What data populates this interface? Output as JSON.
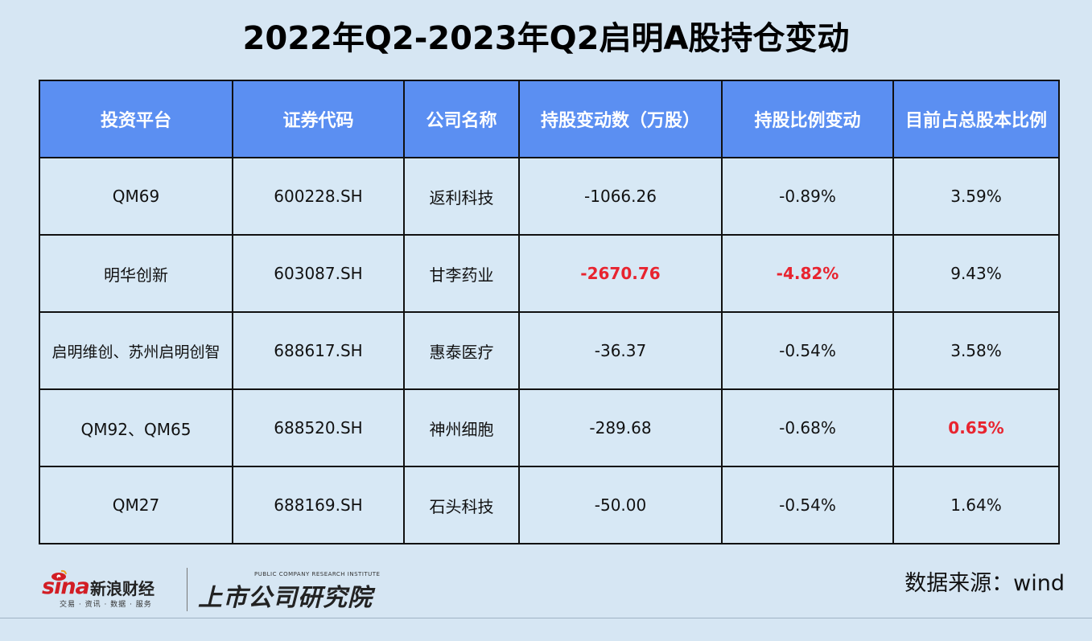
{
  "title": "2022年Q2-2023年Q2启明A股持仓变动",
  "table": {
    "headers": [
      "投资平台",
      "证券代码",
      "公司名称",
      "持股变动数（万股）",
      "持股比例变动",
      "目前占总股本比例"
    ],
    "rows": [
      {
        "platform": "QM69",
        "code": "600228.SH",
        "company": "返利科技",
        "change": "-1066.26",
        "ratio_change": "-0.89%",
        "current_ratio": "3.59%"
      },
      {
        "platform": "明华创新",
        "code": "603087.SH",
        "company": "甘李药业",
        "change": "-2670.76",
        "ratio_change": "-4.82%",
        "current_ratio": "9.43%"
      },
      {
        "platform": "启明维创、苏州启明创智",
        "code": "688617.SH",
        "company": "惠泰医疗",
        "change": "-36.37",
        "ratio_change": "-0.54%",
        "current_ratio": "3.58%"
      },
      {
        "platform": "QM92、QM65",
        "code": "688520.SH",
        "company": "神州细胞",
        "change": "-289.68",
        "ratio_change": "-0.68%",
        "current_ratio": "0.65%"
      },
      {
        "platform": "QM27",
        "code": "688169.SH",
        "company": "石头科技",
        "change": "-50.00",
        "ratio_change": "-0.54%",
        "current_ratio": "1.64%"
      }
    ]
  },
  "highlight_color": "#e8242f",
  "header_color": "#5b8ff2",
  "footer": {
    "sina_logo_text": "sina",
    "sina_name": "新浪财经",
    "sina_tagline": "交易 · 资讯 · 数据 · 服务",
    "institute_en": "PUBLIC COMPANY RESEARCH INSTITUTE",
    "institute_cn": "上市公司研究院",
    "source": "数据来源：wind"
  }
}
